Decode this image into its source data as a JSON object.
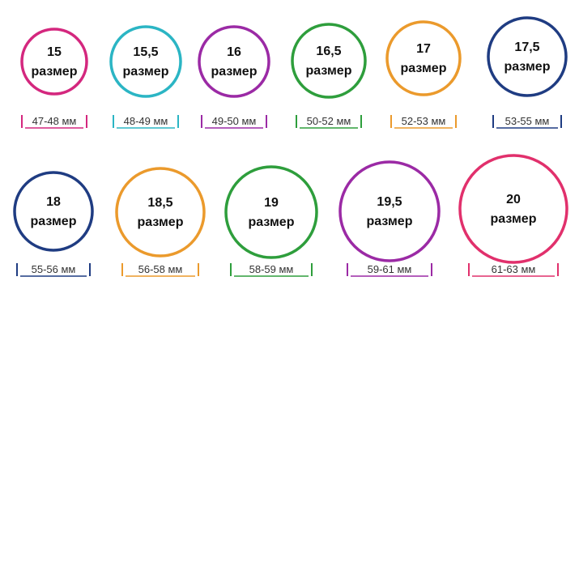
{
  "rings": [
    {
      "size": "15",
      "label": "размер",
      "range": "47-48 мм",
      "color": "#d4277e"
    },
    {
      "size": "15,5",
      "label": "размер",
      "range": "48-49 мм",
      "color": "#2bb5c4"
    },
    {
      "size": "16",
      "label": "размер",
      "range": "49-50 мм",
      "color": "#9b2aa5"
    },
    {
      "size": "16,5",
      "label": "размер",
      "range": "50-52 мм",
      "color": "#2e9e3c"
    },
    {
      "size": "17",
      "label": "размер",
      "range": "52-53 мм",
      "color": "#eb9a2c"
    },
    {
      "size": "17,5",
      "label": "размер",
      "range": "53-55 мм",
      "color": "#1f3c82"
    },
    {
      "size": "18",
      "label": "размер",
      "range": "55-56 мм",
      "color": "#1f3c82"
    },
    {
      "size": "18,5",
      "label": "размер",
      "range": "56-58 мм",
      "color": "#eb9a2c"
    },
    {
      "size": "19",
      "label": "размер",
      "range": "58-59 мм",
      "color": "#2e9e3c"
    },
    {
      "size": "19,5",
      "label": "размер",
      "range": "59-61 мм",
      "color": "#9b2aa5"
    },
    {
      "size": "20",
      "label": "размер",
      "range": "61-63 мм",
      "color": "#e1306c"
    }
  ]
}
